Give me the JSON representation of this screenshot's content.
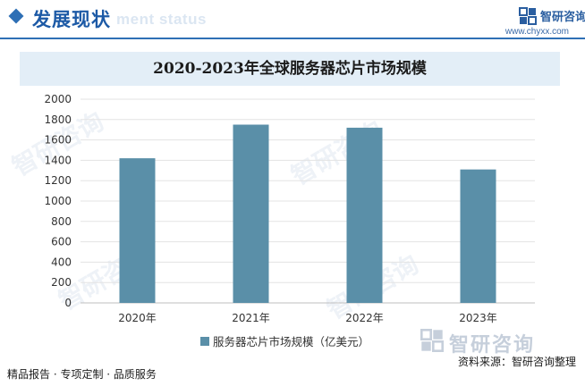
{
  "header": {
    "title": "发展现状",
    "watermark_text": "ment status",
    "brand_name": "智研咨询",
    "brand_url": "www.chyxx.com",
    "accent_color": "#2e6fb5"
  },
  "chart_data": {
    "type": "bar",
    "title": "2020-2023年全球服务器芯片市场规模",
    "categories": [
      "2020年",
      "2021年",
      "2022年",
      "2023年"
    ],
    "series": [
      {
        "name": "服务器芯片市场规模（亿美元）",
        "values": [
          1420,
          1750,
          1720,
          1310
        ],
        "color": "#5a8fa8"
      }
    ],
    "y_ticks": [
      "0",
      "200",
      "400",
      "600",
      "800",
      "1000",
      "1200",
      "1400",
      "1600",
      "1800",
      "2000"
    ],
    "ylim": [
      0,
      2000
    ],
    "grid": true,
    "legend_position": "bottom"
  },
  "footer": {
    "tagline": "精品报告 · 专项定制 · 品质服务",
    "source": "资料来源：智研咨询整理",
    "brand_name": "智研咨询"
  }
}
